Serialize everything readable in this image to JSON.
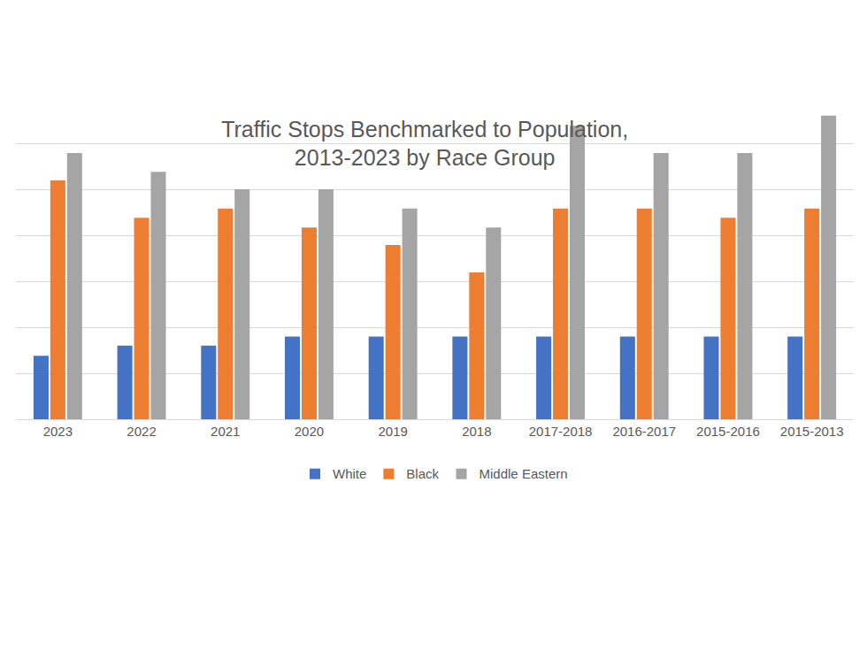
{
  "chart_data": {
    "type": "bar",
    "title": "Traffic Stops Benchmarked to Population,\n2013-2023 by Race Group",
    "categories": [
      "2023",
      "2022",
      "2021",
      "2020",
      "2019",
      "2018",
      "2017-2018",
      "2016-2017",
      "2015-2016",
      "2015-2013"
    ],
    "series": [
      {
        "name": "White",
        "color": "#4472c4",
        "values": [
          1.38,
          1.6,
          1.6,
          1.8,
          1.8,
          1.8,
          1.8,
          1.8,
          1.8,
          1.8
        ]
      },
      {
        "name": "Black",
        "color": "#ed7d31",
        "values": [
          5.19,
          4.38,
          4.58,
          4.17,
          3.79,
          3.19,
          4.58,
          4.58,
          4.38,
          4.58
        ]
      },
      {
        "name": "Middle Eastern",
        "color": "#a5a5a5",
        "values": [
          5.79,
          5.38,
          5.0,
          5.0,
          4.58,
          4.17,
          6.38,
          5.79,
          5.79,
          6.6
        ]
      }
    ],
    "ylim": [
      0,
      7
    ],
    "yticks": [
      0,
      1,
      2,
      3,
      4,
      5,
      6,
      7
    ],
    "grid": true,
    "legend": "bottom",
    "tick_labels": "x"
  }
}
